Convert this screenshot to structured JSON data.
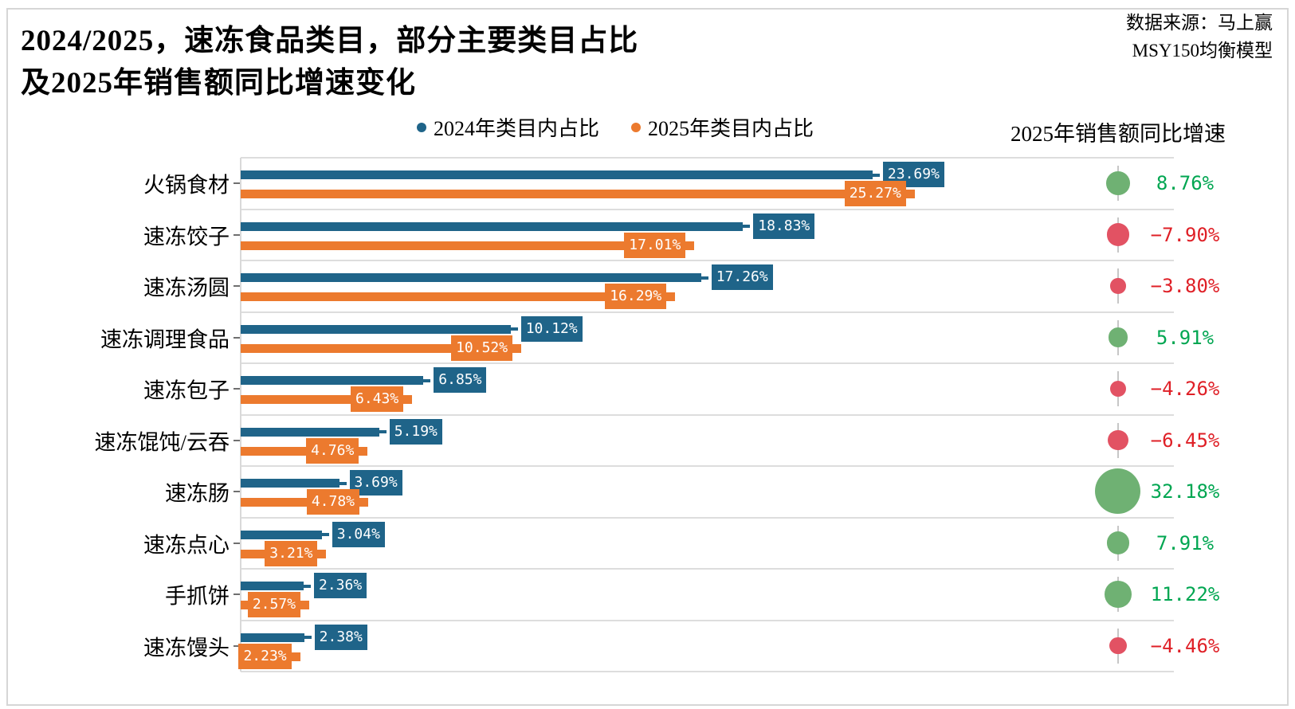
{
  "page": {
    "title_line1": "2024/2025，速冻食品类目，部分主要类目占比",
    "title_line2": "及2025年销售额同比增速变化",
    "source_line1": "数据来源：马上赢",
    "source_line2": "MSY150均衡模型",
    "growth_header": "2025年销售额同比增速"
  },
  "legend": [
    {
      "label": "2024年类目内占比",
      "color": "#1F6489"
    },
    {
      "label": "2025年类目内占比",
      "color": "#EC7A2E"
    }
  ],
  "chart_data": {
    "type": "bar",
    "orientation": "horizontal",
    "title": "2024/2025，速冻食品类目，部分主要类目占比及2025年销售额同比增速变化",
    "categories": [
      "火锅食材",
      "速冻饺子",
      "速冻汤圆",
      "速冻调理食品",
      "速冻包子",
      "速冻馄饨/云吞",
      "速冻肠",
      "速冻点心",
      "手抓饼",
      "速冻馒头"
    ],
    "series": [
      {
        "name": "2024年类目内占比",
        "color": "#1F6489",
        "values": [
          23.69,
          18.83,
          17.26,
          10.12,
          6.85,
          5.19,
          3.69,
          3.04,
          2.36,
          2.38
        ]
      },
      {
        "name": "2025年类目内占比",
        "color": "#EC7A2E",
        "values": [
          25.27,
          17.01,
          16.29,
          10.52,
          6.43,
          4.76,
          4.78,
          3.21,
          2.57,
          2.23
        ]
      }
    ],
    "growth_series": {
      "name": "2025年销售额同比增速",
      "values": [
        8.76,
        -7.9,
        -3.8,
        5.91,
        -4.26,
        -6.45,
        32.18,
        7.91,
        11.22,
        -4.46
      ],
      "marker": "bubble"
    },
    "value_suffix": "%",
    "xlim": [
      0,
      35
    ],
    "grid": "row-separators",
    "legend_position": "top"
  },
  "colors": {
    "bar_2024": "#1F6489",
    "bar_2025": "#EC7A2E",
    "growth_positive_text": "#00A651",
    "growth_negative_text": "#DF1F26",
    "bubble_positive": "#6FB173",
    "bubble_negative": "#E25263",
    "separator": "#dddddd"
  }
}
